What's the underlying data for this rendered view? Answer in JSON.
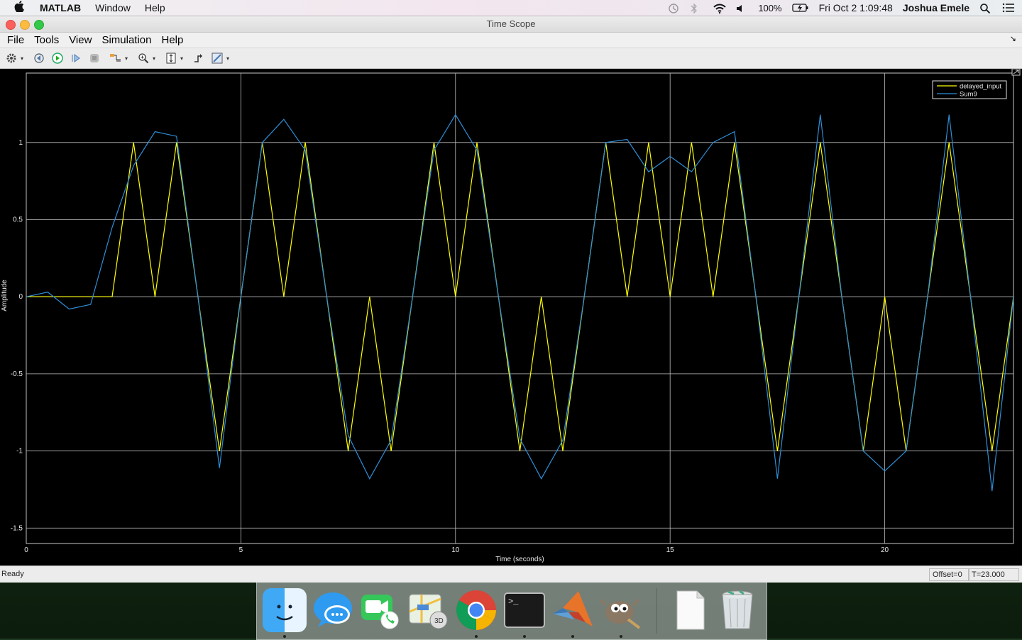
{
  "menubar": {
    "app_name": "MATLAB",
    "menus": [
      "Window",
      "Help"
    ],
    "battery": "100%",
    "datetime": "Fri Oct 2  1:09:48",
    "user": "Joshua Emele"
  },
  "window": {
    "title": "Time Scope",
    "menus": [
      "File",
      "Tools",
      "View",
      "Simulation",
      "Help"
    ]
  },
  "status": {
    "text": "Ready",
    "offset": "Offset=0",
    "time": "T=23.000"
  },
  "colors": {
    "yellow": "#ffff00",
    "blue": "#0072bd",
    "grid": "#c8c8c8",
    "background": "#000000"
  },
  "chart_data": {
    "type": "line",
    "xlabel": "Time (seconds)",
    "ylabel": "Amplitude",
    "xlim": [
      0,
      23
    ],
    "ylim": [
      -1.6,
      1.45
    ],
    "xticks": [
      0,
      5,
      10,
      15,
      20
    ],
    "yticks": [
      1,
      0.5,
      0,
      -0.5,
      -1,
      -1.5
    ],
    "grid": true,
    "legend_position": "top-right",
    "series": [
      {
        "name": "delayed_input",
        "color": "#ffff00",
        "x": [
          0,
          1,
          1.5,
          2,
          2.5,
          3,
          3.5,
          4,
          4.5,
          5,
          5.5,
          6,
          6.5,
          7,
          7.5,
          8,
          8.5,
          9,
          9.5,
          10,
          10.5,
          11,
          11.5,
          12,
          12.5,
          13,
          13.5,
          14,
          14.5,
          15,
          15.5,
          16,
          16.5,
          17,
          17.5,
          18,
          18.5,
          19,
          19.5,
          20,
          20.5,
          21,
          21.5,
          22,
          22.5,
          23
        ],
        "y": [
          0,
          0,
          0,
          0,
          1,
          0,
          1,
          0,
          -1,
          0,
          1,
          0,
          1,
          0,
          -1,
          0,
          -1,
          0,
          1,
          0,
          1,
          0,
          -1,
          0,
          -1,
          0,
          1,
          0,
          1,
          0,
          1,
          0,
          1,
          0,
          -1,
          0,
          1,
          0,
          -1,
          0,
          -1,
          0,
          1,
          0,
          -1,
          0
        ]
      },
      {
        "name": "Sum9",
        "color": "#2e8fd8",
        "x": [
          0,
          0.5,
          1,
          1.5,
          2,
          2.5,
          3,
          3.5,
          4,
          4.5,
          5,
          5.5,
          6,
          6.5,
          7,
          7.5,
          8,
          8.5,
          9,
          9.5,
          10,
          10.5,
          11,
          11.5,
          12,
          12.5,
          13,
          13.5,
          14,
          14.5,
          15,
          15.5,
          16,
          16.5,
          17,
          17.5,
          18,
          18.5,
          19,
          19.5,
          20,
          20.5,
          21,
          21.5,
          22,
          22.5,
          23
        ],
        "y": [
          0,
          0.03,
          -0.08,
          -0.05,
          0.45,
          0.85,
          1.07,
          1.04,
          0.0,
          -1.11,
          0.0,
          1.0,
          1.15,
          0.95,
          0.0,
          -0.9,
          -1.18,
          -0.93,
          0.0,
          0.95,
          1.18,
          0.95,
          0.0,
          -0.92,
          -1.18,
          -0.93,
          0.0,
          1.0,
          1.02,
          0.81,
          0.91,
          0.81,
          1.0,
          1.07,
          0.0,
          -1.18,
          0.0,
          1.18,
          0.0,
          -1.0,
          -1.13,
          -1.0,
          0.0,
          1.18,
          0.0,
          -1.26,
          0.0
        ]
      }
    ]
  },
  "dock": {
    "apps": [
      "finder",
      "messages",
      "facetime",
      "maps",
      "chrome",
      "terminal",
      "matlab",
      "gimp",
      "document",
      "trash"
    ]
  }
}
